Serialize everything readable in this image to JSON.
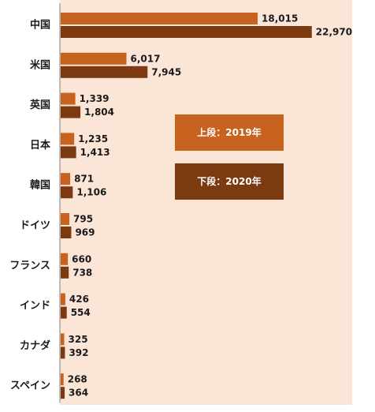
{
  "chart_data": {
    "type": "bar",
    "orientation": "horizontal",
    "categories": [
      "中国",
      "米国",
      "英国",
      "日本",
      "韓国",
      "ドイツ",
      "フランス",
      "インド",
      "カナダ",
      "スペイン"
    ],
    "series": [
      {
        "name": "上段：2019年",
        "color": "#c8621f",
        "values": [
          18015,
          6017,
          1339,
          1235,
          871,
          795,
          660,
          426,
          325,
          268
        ]
      },
      {
        "name": "下段：2020年",
        "color": "#7b3a10",
        "values": [
          22970,
          7945,
          1804,
          1413,
          1106,
          969,
          738,
          554,
          392,
          364
        ]
      }
    ],
    "value_labels": [
      [
        "18,015",
        "6,017",
        "1,339",
        "1,235",
        "871",
        "795",
        "660",
        "426",
        "325",
        "268"
      ],
      [
        "22,970",
        "7,945",
        "1,804",
        "1,413",
        "1,106",
        "969",
        "738",
        "554",
        "392",
        "364"
      ]
    ],
    "xlim": [
      0,
      24500
    ],
    "grid": false,
    "legend_position": "right-middle",
    "plot_background": "#fbe5d6"
  }
}
